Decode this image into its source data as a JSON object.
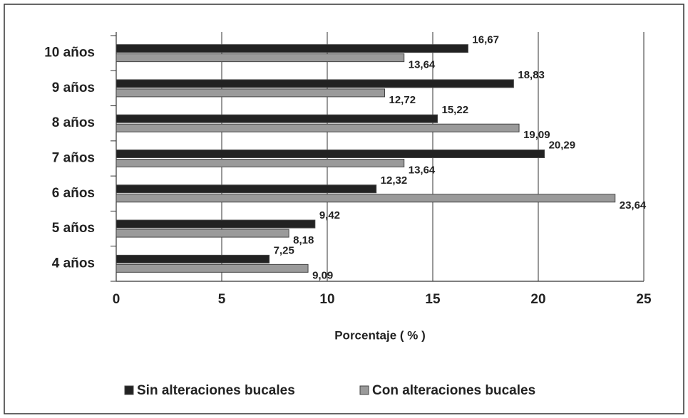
{
  "chart_data": {
    "type": "bar",
    "orientation": "horizontal",
    "categories": [
      "4 años",
      "5 años",
      "6 años",
      "7 años",
      "8 años",
      "9 años",
      "10 años"
    ],
    "series": [
      {
        "name": "Sin alteraciones bucales",
        "color": "#222222",
        "values": [
          7.25,
          9.42,
          12.32,
          20.29,
          15.22,
          18.83,
          16.67
        ],
        "value_labels": [
          "7,25",
          "9,42",
          "12,32",
          "20,29",
          "15,22",
          "18,83",
          "16,67"
        ]
      },
      {
        "name": "Con alteraciones bucales",
        "color": "#9a9a9a",
        "values": [
          9.09,
          8.18,
          23.64,
          13.64,
          19.09,
          12.72,
          13.64
        ],
        "value_labels": [
          "9,09",
          "8,18",
          "23,64",
          "13,64",
          "19,09",
          "12,72",
          "13,64"
        ]
      }
    ],
    "xlabel": "Porcentaje ( % )",
    "xlim": [
      0,
      25
    ],
    "xticks": [
      0,
      5,
      10,
      15,
      20,
      25
    ],
    "grid": true,
    "legend": "bottom"
  }
}
